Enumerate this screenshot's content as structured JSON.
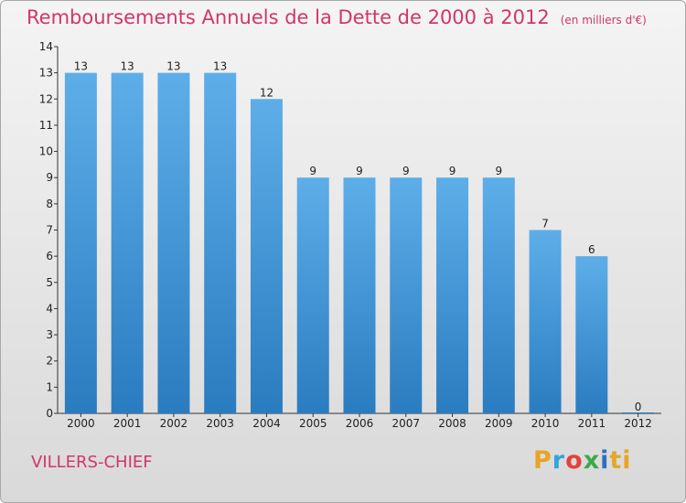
{
  "title": "Remboursements Annuels de la Dette de 2000 à 2012",
  "unit_note": "(en milliers d'€)",
  "commune": "VILLERS-CHIEF",
  "logo": [
    "P",
    "r",
    "o",
    "x",
    "i",
    "t",
    "i"
  ],
  "colors": {
    "title": "#d1366a",
    "bar_light": "#5daee8",
    "bar_dark": "#2a7cc0"
  },
  "chart_data": {
    "type": "bar",
    "title": "Remboursements Annuels de la Dette de 2000 à 2012",
    "categories": [
      "2000",
      "2001",
      "2002",
      "2003",
      "2004",
      "2005",
      "2006",
      "2007",
      "2008",
      "2009",
      "2010",
      "2011",
      "2012"
    ],
    "values": [
      13,
      13,
      13,
      13,
      12,
      9,
      9,
      9,
      9,
      9,
      7,
      6,
      0
    ],
    "data_labels": [
      "13",
      "13",
      "13",
      "13",
      "12",
      "9",
      "9",
      "9",
      "9",
      "9",
      "7",
      "6",
      "0"
    ],
    "y_ticks": [
      "0",
      "1",
      "2",
      "3",
      "4",
      "5",
      "6",
      "7",
      "8",
      "9",
      "10",
      "11",
      "12",
      "13",
      "14"
    ],
    "ylim": [
      0,
      14
    ],
    "xlabel": "",
    "ylabel": "",
    "grid": false,
    "legend": "none"
  }
}
